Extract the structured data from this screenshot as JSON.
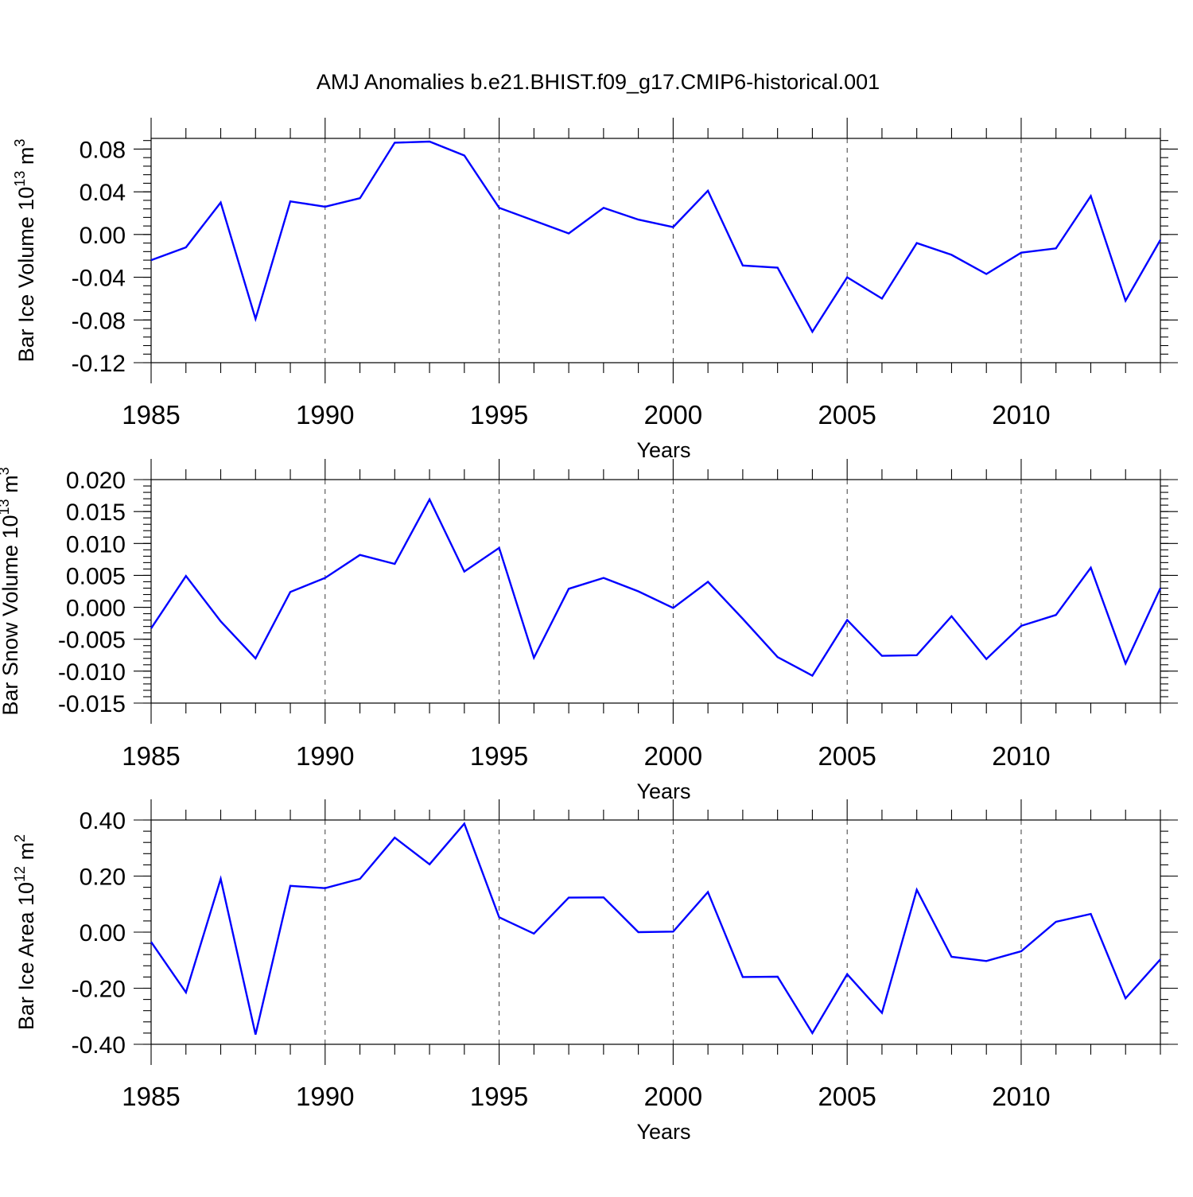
{
  "title": "AMJ Anomalies b.e21.BHIST.f09_g17.CMIP6-historical.001",
  "colors": {
    "line": "#0000ff",
    "axis": "#000000",
    "background": "#ffffff"
  },
  "chart_data": [
    {
      "type": "line",
      "ylabel_main": "Bar Ice Volume 10",
      "ylabel_sup1": "13",
      "ylabel_mid": " m",
      "ylabel_sup2": "3",
      "xlabel": "Years",
      "xlim": [
        1985,
        2014
      ],
      "ylim": [
        -0.12,
        0.09
      ],
      "yticks": [
        -0.12,
        -0.08,
        -0.04,
        0.0,
        0.04,
        0.08
      ],
      "ytick_labels": [
        "-0.12",
        "-0.08",
        "-0.04",
        "0.00",
        "0.04",
        "0.08"
      ],
      "y_minor_step": 0.008,
      "xticks": [
        1985,
        1990,
        1995,
        2000,
        2005,
        2010
      ],
      "xtick_labels": [
        "1985",
        "1990",
        "1995",
        "2000",
        "2005",
        "2010"
      ],
      "grid": "vertical-dashed",
      "series": [
        {
          "name": "Bar Ice Volume",
          "x": [
            1985,
            1986,
            1987,
            1988,
            1989,
            1990,
            1991,
            1992,
            1993,
            1994,
            1995,
            1996,
            1997,
            1998,
            1999,
            2000,
            2001,
            2002,
            2003,
            2004,
            2005,
            2006,
            2007,
            2008,
            2009,
            2010,
            2011,
            2012,
            2013,
            2014
          ],
          "values": [
            -0.024,
            -0.012,
            0.03,
            -0.079,
            0.031,
            0.026,
            0.034,
            0.086,
            0.087,
            0.074,
            0.025,
            0.013,
            0.001,
            0.025,
            0.014,
            0.007,
            0.041,
            -0.029,
            -0.031,
            -0.091,
            -0.04,
            -0.06,
            -0.008,
            -0.019,
            -0.037,
            -0.017,
            -0.013,
            0.036,
            -0.062,
            -0.005
          ]
        }
      ]
    },
    {
      "type": "line",
      "ylabel_main": "Bar Snow Volume 10",
      "ylabel_sup1": "13",
      "ylabel_mid": " m",
      "ylabel_sup2": "3",
      "xlabel": "Years",
      "xlim": [
        1985,
        2014
      ],
      "ylim": [
        -0.015,
        0.02
      ],
      "yticks": [
        -0.015,
        -0.01,
        -0.005,
        0.0,
        0.005,
        0.01,
        0.015,
        0.02
      ],
      "ytick_labels": [
        "-0.015",
        "-0.010",
        "-0.005",
        "0.000",
        "0.005",
        "0.010",
        "0.015",
        "0.020"
      ],
      "y_minor_step": 0.001,
      "xticks": [
        1985,
        1990,
        1995,
        2000,
        2005,
        2010
      ],
      "xtick_labels": [
        "1985",
        "1990",
        "1995",
        "2000",
        "2005",
        "2010"
      ],
      "grid": "vertical-dashed",
      "series": [
        {
          "name": "Bar Snow Volume",
          "x": [
            1985,
            1986,
            1987,
            1988,
            1989,
            1990,
            1991,
            1992,
            1993,
            1994,
            1995,
            1996,
            1997,
            1998,
            1999,
            2000,
            2001,
            2002,
            2003,
            2004,
            2005,
            2006,
            2007,
            2008,
            2009,
            2010,
            2011,
            2012,
            2013,
            2014
          ],
          "values": [
            -0.0033,
            0.0049,
            -0.0022,
            -0.008,
            0.0024,
            0.0046,
            0.0082,
            0.0068,
            0.0169,
            0.0056,
            0.0093,
            -0.0079,
            0.0029,
            0.0046,
            0.0025,
            -0.0001,
            0.004,
            -0.0018,
            -0.0078,
            -0.0107,
            -0.002,
            -0.0076,
            -0.0075,
            -0.0014,
            -0.0081,
            -0.0029,
            -0.0012,
            0.0062,
            -0.0088,
            0.003
          ]
        }
      ]
    },
    {
      "type": "line",
      "ylabel_main": "Bar Ice Area 10",
      "ylabel_sup1": "12",
      "ylabel_mid": " m",
      "ylabel_sup2": "2",
      "xlabel": "Years",
      "xlim": [
        1985,
        2014
      ],
      "ylim": [
        -0.4,
        0.4
      ],
      "yticks": [
        -0.4,
        -0.2,
        0.0,
        0.2,
        0.4
      ],
      "ytick_labels": [
        "-0.40",
        "-0.20",
        "0.00",
        "0.20",
        "0.40"
      ],
      "y_minor_step": 0.04,
      "xticks": [
        1985,
        1990,
        1995,
        2000,
        2005,
        2010
      ],
      "xtick_labels": [
        "1985",
        "1990",
        "1995",
        "2000",
        "2005",
        "2010"
      ],
      "grid": "vertical-dashed",
      "series": [
        {
          "name": "Bar Ice Area",
          "x": [
            1985,
            1986,
            1987,
            1988,
            1989,
            1990,
            1991,
            1992,
            1993,
            1994,
            1995,
            1996,
            1997,
            1998,
            1999,
            2000,
            2001,
            2002,
            2003,
            2004,
            2005,
            2006,
            2007,
            2008,
            2009,
            2010,
            2011,
            2012,
            2013,
            2014
          ],
          "values": [
            -0.035,
            -0.215,
            0.19,
            -0.365,
            0.165,
            0.157,
            0.19,
            0.337,
            0.242,
            0.387,
            0.053,
            -0.005,
            0.123,
            0.124,
            0.0,
            0.002,
            0.143,
            -0.16,
            -0.159,
            -0.36,
            -0.15,
            -0.288,
            0.151,
            -0.088,
            -0.103,
            -0.068,
            0.037,
            0.065,
            -0.236,
            -0.097
          ]
        }
      ]
    }
  ]
}
